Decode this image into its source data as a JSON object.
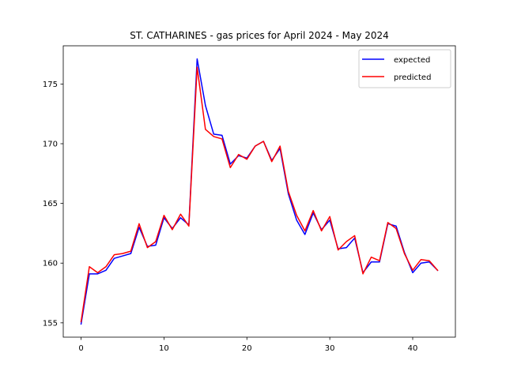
{
  "chart_data": {
    "type": "line",
    "title": "ST. CATHARINES - gas prices for April 2024 - May 2024",
    "xlabel": "",
    "ylabel": "",
    "xlim": [
      -2.15,
      45.15
    ],
    "ylim": [
      153.8,
      178.2
    ],
    "x_ticks": [
      0,
      10,
      20,
      30,
      40
    ],
    "y_ticks": [
      155,
      160,
      165,
      170,
      175
    ],
    "grid": false,
    "legend_position": "top-right",
    "x": [
      0,
      1,
      2,
      3,
      4,
      5,
      6,
      7,
      8,
      9,
      10,
      11,
      12,
      13,
      14,
      15,
      16,
      17,
      18,
      19,
      20,
      21,
      22,
      23,
      24,
      25,
      26,
      27,
      28,
      29,
      30,
      31,
      32,
      33,
      34,
      35,
      36,
      37,
      38,
      39,
      40,
      41,
      42,
      43
    ],
    "series": [
      {
        "name": "expected",
        "color": "#0000ff",
        "values": [
          154.9,
          159.1,
          159.1,
          159.4,
          160.4,
          160.6,
          160.8,
          163.0,
          161.4,
          161.5,
          163.8,
          162.9,
          163.8,
          163.2,
          177.1,
          173.2,
          170.8,
          170.7,
          168.3,
          169.0,
          168.8,
          169.8,
          170.2,
          168.6,
          169.6,
          165.8,
          163.6,
          162.4,
          164.2,
          162.8,
          163.6,
          161.2,
          161.3,
          162.1,
          159.2,
          160.1,
          160.1,
          163.3,
          163.1,
          160.9,
          159.2,
          160.0,
          160.1,
          159.4
        ]
      },
      {
        "name": "predicted",
        "color": "#ff0000",
        "values": [
          155.1,
          159.7,
          159.2,
          159.7,
          160.7,
          160.8,
          161.0,
          163.3,
          161.3,
          161.8,
          164.0,
          162.8,
          164.1,
          163.1,
          176.4,
          171.2,
          170.6,
          170.4,
          168.0,
          169.1,
          168.7,
          169.8,
          170.2,
          168.5,
          169.8,
          166.0,
          164.0,
          162.7,
          164.4,
          162.7,
          163.9,
          161.1,
          161.8,
          162.3,
          159.1,
          160.5,
          160.2,
          163.4,
          162.9,
          160.8,
          159.4,
          160.3,
          160.2,
          159.4
        ]
      }
    ]
  }
}
